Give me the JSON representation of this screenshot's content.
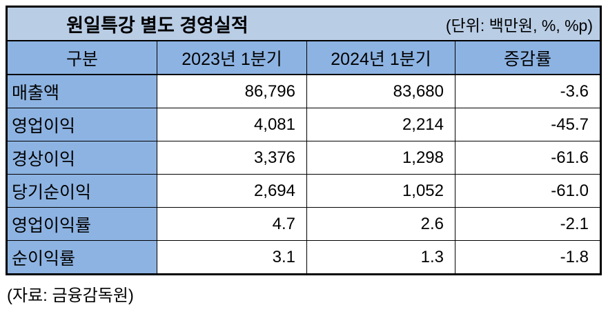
{
  "chart_data": {
    "type": "table",
    "title": "원일특강 별도 경영실적",
    "unit_note": "(단위: 백만원, %, %p)",
    "columns": [
      "구분",
      "2023년 1분기",
      "2024년 1분기",
      "증감률"
    ],
    "rows": [
      {
        "label": "매출액",
        "values": [
          86796,
          83680,
          -3.6
        ],
        "display": [
          "86,796",
          "83,680",
          "-3.6"
        ]
      },
      {
        "label": "영업이익",
        "values": [
          4081,
          2214,
          -45.7
        ],
        "display": [
          "4,081",
          "2,214",
          "-45.7"
        ]
      },
      {
        "label": "경상이익",
        "values": [
          3376,
          1298,
          -61.6
        ],
        "display": [
          "3,376",
          "1,298",
          "-61.6"
        ]
      },
      {
        "label": "당기순이익",
        "values": [
          2694,
          1052,
          -61.0
        ],
        "display": [
          "2,694",
          "1,052",
          "-61.0"
        ]
      },
      {
        "label": "영업이익률",
        "values": [
          4.7,
          2.6,
          -2.1
        ],
        "display": [
          "4.7",
          "2.6",
          "-2.1"
        ]
      },
      {
        "label": "순이익률",
        "values": [
          3.1,
          1.3,
          -1.8
        ],
        "display": [
          "3.1",
          "1.3",
          "-1.8"
        ]
      }
    ],
    "source": "(자료: 금융감독원)",
    "layout": {
      "legend": "none",
      "grid": "table-borders"
    }
  },
  "colors": {
    "title_row_bg": "#B9CDE5",
    "header_row_bg": "#8DB3E2",
    "label_column_bg": "#8DB3E2",
    "value_cell_bg": "#FFFFFF",
    "border": "#000000",
    "text": "#000000"
  }
}
